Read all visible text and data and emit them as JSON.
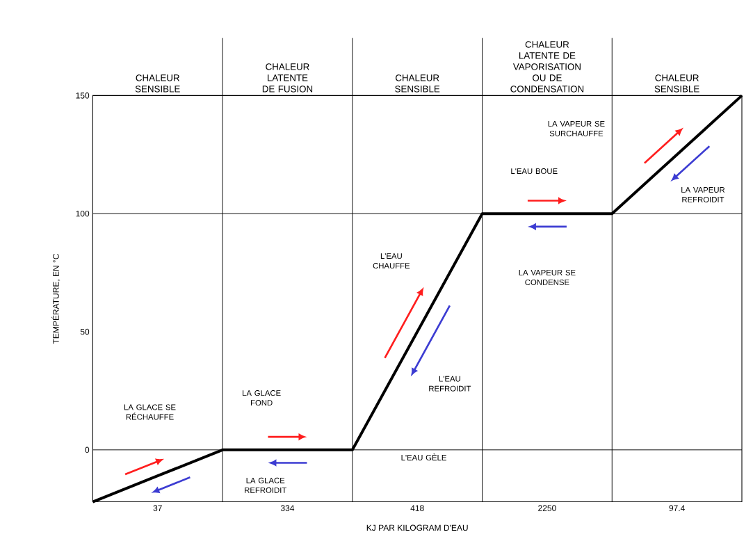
{
  "chart_data": {
    "type": "line",
    "ylabel": "TEMPÉRATURE, EN °C",
    "xlabel": "KJ PAR KILOGRAM D'EAU",
    "categories": [
      null,
      "37",
      null,
      "334",
      null,
      "418",
      null,
      "2250",
      null,
      "97.4",
      null
    ],
    "ylim": [
      -22,
      150
    ],
    "yticks": [
      0,
      50,
      100,
      150
    ],
    "series": [
      {
        "color": "#000000",
        "values": [
          -22,
          -11,
          0,
          0,
          0,
          50,
          100,
          100,
          100,
          125,
          150
        ]
      }
    ],
    "grid": "x",
    "ref_lines": [
      {
        "axis": "y",
        "value": 0
      },
      {
        "axis": "y",
        "value": 100
      }
    ],
    "annotations": [
      "CHALEUR SENSIBLE",
      "CHALEUR LATENTE DE FUSION",
      "CHALEUR SENSIBLE",
      "CHALEUR LATENTE DE VAPORISATION OU DE CONDENSATION",
      "CHALEUR SENSIBLE",
      "LA GLACE SE RÉCHAUFFE",
      "LA GLACE REFROIDIT",
      "LA GLACE FOND",
      "L'EAU CHAUFFE",
      "L'EAU REFROIDIT",
      "L'EAU GÈLE",
      "L'EAU BOUE",
      "LA VAPEUR SE CONDENSE",
      "LA VAPEUR SE SURCHAUFFE",
      "LA VAPEUR REFROIDIT"
    ]
  }
}
